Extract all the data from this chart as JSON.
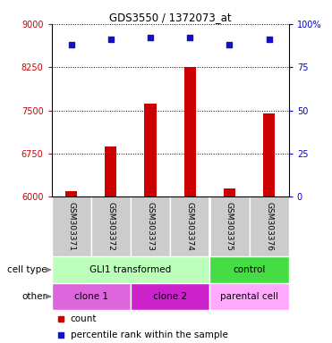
{
  "title": "GDS3550 / 1372073_at",
  "samples": [
    "GSM303371",
    "GSM303372",
    "GSM303373",
    "GSM303374",
    "GSM303375",
    "GSM303376"
  ],
  "bar_values": [
    6100,
    6870,
    7620,
    8260,
    6140,
    7440
  ],
  "percentile_values": [
    88,
    91,
    92,
    92,
    88,
    91
  ],
  "ylim_left": [
    6000,
    9000
  ],
  "ylim_right": [
    0,
    100
  ],
  "yticks_left": [
    6000,
    6750,
    7500,
    8250,
    9000
  ],
  "yticks_right": [
    0,
    25,
    50,
    75,
    100
  ],
  "bar_color": "#cc0000",
  "percentile_color": "#1111cc",
  "cell_type_groups": [
    {
      "label": "GLI1 transformed",
      "start": 0,
      "end": 3,
      "color": "#bbffbb"
    },
    {
      "label": "control",
      "start": 4,
      "end": 5,
      "color": "#44dd44"
    }
  ],
  "other_groups": [
    {
      "label": "clone 1",
      "start": 0,
      "end": 1,
      "color": "#dd66dd"
    },
    {
      "label": "clone 2",
      "start": 2,
      "end": 3,
      "color": "#cc22cc"
    },
    {
      "label": "parental cell",
      "start": 4,
      "end": 5,
      "color": "#ffaaff"
    }
  ],
  "legend_count_label": "count",
  "legend_percentile_label": "percentile rank within the sample",
  "left_label_color": "#cc0000",
  "right_label_color": "#0000cc",
  "sample_bg_color": "#cccccc"
}
